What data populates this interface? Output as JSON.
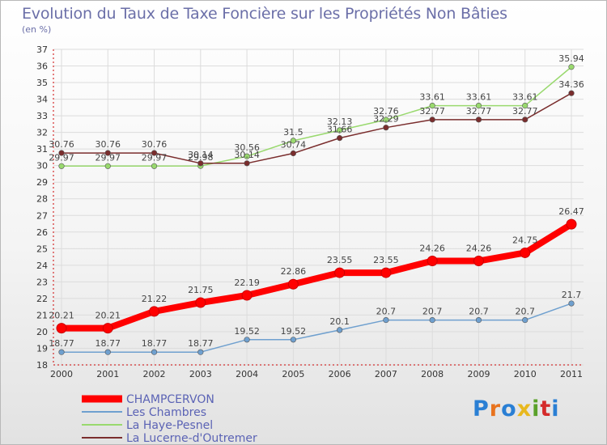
{
  "title": "Evolution du Taux de Taxe Foncière sur les Propriétés Non Bâties",
  "unit_label": "(en %)",
  "logo": {
    "text": "Proxiti",
    "letter_colors": [
      "#2a7fd4",
      "#e8731e",
      "#2a7fd4",
      "#e8b81e",
      "#5aa12a",
      "#d42a2a",
      "#2a7fd4"
    ]
  },
  "chart_data": {
    "type": "line",
    "title": "Evolution du Taux de Taxe Foncière sur les Propriétés Non Bâties",
    "ylabel": "(en %)",
    "xlabel": "",
    "x": [
      "2000",
      "2001",
      "2002",
      "2003",
      "2004",
      "2005",
      "2006",
      "2007",
      "2008",
      "2009",
      "2010",
      "2011"
    ],
    "ylim": [
      18,
      37
    ],
    "yticks": [
      "18",
      "19",
      "20",
      "21",
      "22",
      "23",
      "24",
      "25",
      "26",
      "27",
      "28",
      "29",
      "30",
      "31",
      "32",
      "33",
      "34",
      "35",
      "36",
      "37"
    ],
    "grid": true,
    "legend_position": "bottom-left",
    "series": [
      {
        "name": "CHAMPCERVON",
        "color": "#ff0000",
        "values": [
          20.21,
          20.21,
          21.22,
          21.75,
          22.19,
          22.86,
          23.55,
          23.55,
          24.26,
          24.26,
          24.75,
          26.47
        ],
        "labels": [
          "20.21",
          "20.21",
          "21.22",
          "21.75",
          "22.19",
          "22.86",
          "23.55",
          "23.55",
          "24.26",
          "24.26",
          "24.75",
          "26.47"
        ]
      },
      {
        "name": "Les Chambres",
        "color": "#6fa0cf",
        "values": [
          18.77,
          18.77,
          18.77,
          18.77,
          19.52,
          19.52,
          20.1,
          20.7,
          20.7,
          20.7,
          20.7,
          21.7
        ],
        "labels": [
          "18.77",
          "18.77",
          "18.77",
          "18.77",
          "19.52",
          "19.52",
          "20.1",
          "20.7",
          "20.7",
          "20.7",
          "20.7",
          "21.7"
        ]
      },
      {
        "name": "La Haye-Pesnel",
        "color": "#99d96e",
        "values": [
          29.97,
          29.97,
          29.97,
          29.98,
          30.56,
          31.5,
          32.13,
          32.76,
          33.61,
          33.61,
          33.61,
          35.94
        ],
        "labels": [
          "29.97",
          "29.97",
          "29.97",
          "29.98",
          "30.56",
          "31.5",
          "32.13",
          "32.76",
          "33.61",
          "33.61",
          "33.61",
          "35.94"
        ]
      },
      {
        "name": "La Lucerne-d'Outremer",
        "color": "#7a2d2d",
        "values": [
          30.76,
          30.76,
          30.76,
          30.14,
          30.14,
          30.74,
          31.66,
          32.29,
          32.77,
          32.77,
          32.77,
          34.36
        ],
        "labels": [
          "30.76",
          "30.76",
          "30.76",
          "30.14",
          "30.14",
          "30.74",
          "31.66",
          "32.29",
          "32.77",
          "32.77",
          "32.77",
          "34.36"
        ]
      }
    ]
  }
}
